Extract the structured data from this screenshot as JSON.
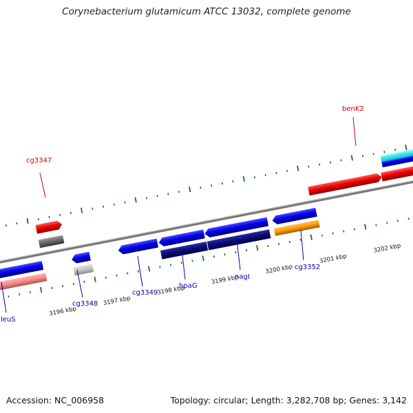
{
  "title": "Corynebacterium glutamicum ATCC 13032, complete genome",
  "footer": {
    "accession": "Accession: NC_006958",
    "summary": "Topology: circular; Length: 3,282,708 bp; Genes: 3,142"
  },
  "colors": {
    "backbone": "#777777",
    "tick": "#1a6f1a",
    "label_forward": "#cc0000",
    "label_reverse": "#0000aa"
  },
  "tick_labels": [
    "3196 kbp",
    "3197 kbp",
    "3198 kbp",
    "3199 kbp",
    "3200 kbp",
    "3201 kbp",
    "3202 kbp"
  ],
  "gene_labels": [
    {
      "name": "cg3347",
      "strand": "forward"
    },
    {
      "name": "benK2",
      "strand": "forward"
    },
    {
      "name": "leuS",
      "strand": "reverse"
    },
    {
      "name": "cg3348",
      "strand": "reverse"
    },
    {
      "name": "cg3349",
      "strand": "reverse"
    },
    {
      "name": "hpaG",
      "strand": "reverse"
    },
    {
      "name": "nagI",
      "strand": "reverse"
    },
    {
      "name": "cg3352",
      "strand": "reverse"
    }
  ]
}
